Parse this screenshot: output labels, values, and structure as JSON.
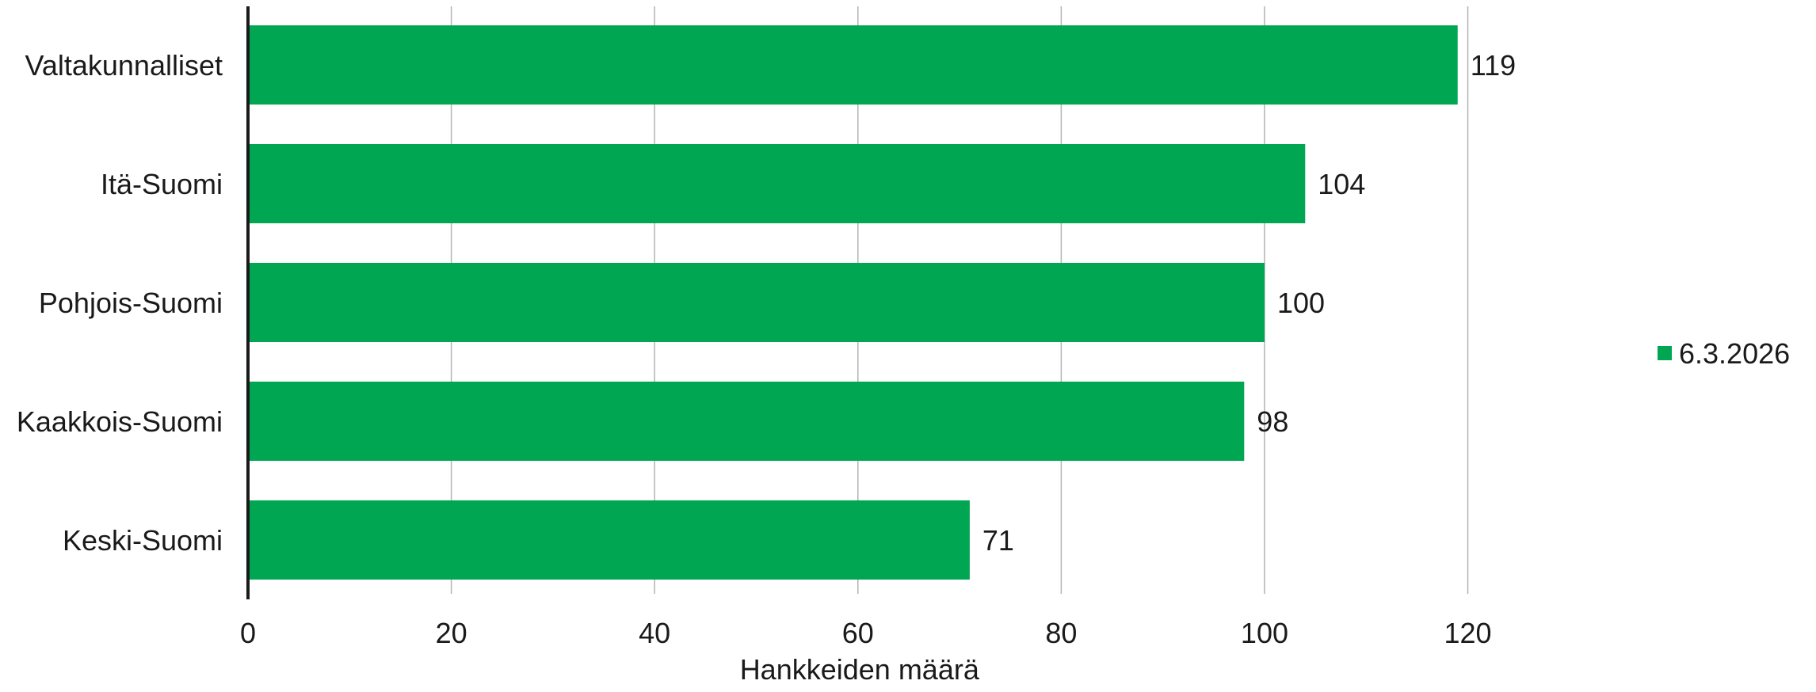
{
  "chart_data": {
    "type": "bar",
    "orientation": "horizontal",
    "categories": [
      "Valtakunnalliset",
      "Itä-Suomi",
      "Pohjois-Suomi",
      "Kaakkois-Suomi",
      "Keski-Suomi"
    ],
    "series": [
      {
        "name": "6.3.2026",
        "values": [
          119,
          104,
          100,
          98,
          71
        ],
        "color": "#00A651"
      }
    ],
    "data_labels": [
      "119",
      "104",
      "100",
      "98",
      "71"
    ],
    "x_ticks": [
      0,
      20,
      40,
      60,
      80,
      100,
      120
    ],
    "x_tick_labels": [
      "0",
      "20",
      "40",
      "60",
      "80",
      "100",
      "120"
    ],
    "xlim": [
      0,
      135
    ],
    "xlabel": "Hankkeiden määrä",
    "ylabel": "",
    "title": "",
    "grid": "vertical",
    "legend_position": "right",
    "colors": {
      "bar": "#00A651",
      "grid": "#b3b3b3",
      "axis": "#1a1a1a",
      "text": "#1a1a1a"
    }
  }
}
